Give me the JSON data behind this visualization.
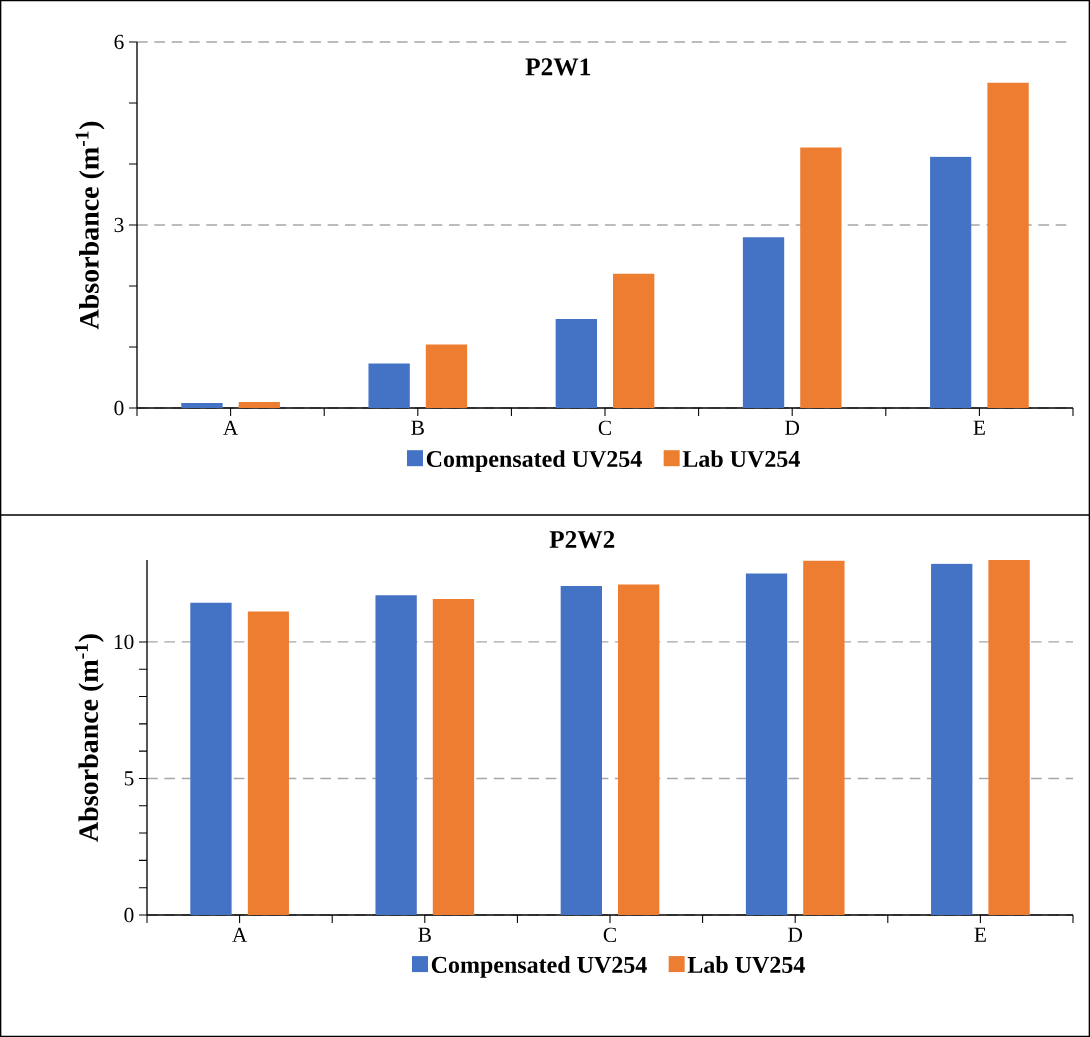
{
  "chart_data": [
    {
      "type": "bar",
      "title": "P2W1",
      "ylabel": "Absorbance (m$^{-1}$)",
      "categories": [
        "A",
        "B",
        "C",
        "D",
        "E"
      ],
      "series": [
        {
          "name": "Compensated UV254",
          "color": "#4472c4",
          "values": [
            0.08,
            0.73,
            1.46,
            2.8,
            4.12
          ]
        },
        {
          "name": "Lab UV254",
          "color": "#ed7d31",
          "values": [
            0.1,
            1.04,
            2.2,
            4.27,
            5.33
          ]
        }
      ],
      "ylim": [
        0,
        6
      ],
      "yticks": [
        0,
        3,
        6
      ],
      "grid": "y",
      "legend": "bottom"
    },
    {
      "type": "bar",
      "title": "P2W2",
      "ylabel": "Absorbance (m$^{-1}$)",
      "categories": [
        "A",
        "B",
        "C",
        "D",
        "E"
      ],
      "series": [
        {
          "name": "Compensated UV254",
          "color": "#4472c4",
          "values": [
            11.43,
            11.71,
            12.05,
            12.51,
            12.86
          ]
        },
        {
          "name": "Lab UV254",
          "color": "#ed7d31",
          "values": [
            11.11,
            11.57,
            12.1,
            12.97,
            13.0
          ]
        }
      ],
      "ylim": [
        0,
        13
      ],
      "yticks": [
        0,
        5,
        10
      ],
      "grid": "y",
      "legend": "bottom"
    }
  ]
}
